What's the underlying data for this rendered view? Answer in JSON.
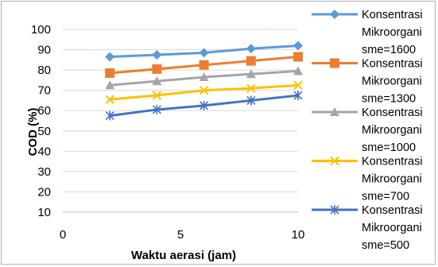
{
  "chart_data": {
    "type": "line",
    "title": "",
    "xlabel": "Waktu aerasi  (jam)",
    "ylabel": "COD (%)",
    "xlim": [
      0,
      10
    ],
    "ylim": [
      10,
      100
    ],
    "x_ticks": [
      "0",
      "5",
      "10"
    ],
    "y_ticks": [
      "10",
      "20",
      "30",
      "40",
      "50",
      "60",
      "70",
      "80",
      "90",
      "100"
    ],
    "grid": "horizontal",
    "legend_position": "right",
    "x": [
      2,
      4,
      6,
      8,
      10
    ],
    "series": [
      {
        "name": "Konsentrasi Mikroorganisme=1600",
        "legend_lines": [
          "Konsentrasi",
          "Mikroorgani",
          "sme=1600"
        ],
        "color": "#5B9BD5",
        "marker": "diamond",
        "values": [
          86.5,
          87.5,
          88.5,
          90.5,
          92
        ]
      },
      {
        "name": "Konsentrasi Mikroorganisme=1300",
        "legend_lines": [
          "Konsentrasi",
          "Mikroorgani",
          "sme=1300"
        ],
        "color": "#ED7D31",
        "marker": "square",
        "values": [
          78.5,
          80.5,
          82.5,
          84.5,
          86.5
        ]
      },
      {
        "name": "Konsentrasi Mikroorganisme=1000",
        "legend_lines": [
          "Konsentrasi",
          "Mikroorgani",
          "sme=1000"
        ],
        "color": "#A5A5A5",
        "marker": "triangle",
        "values": [
          72.5,
          74.5,
          76.5,
          78,
          79.5
        ]
      },
      {
        "name": "Konsentrasi Mikroorganisme=700",
        "legend_lines": [
          "Konsentrasi",
          "Mikroorgani",
          "sme=700"
        ],
        "color": "#FFC000",
        "marker": "x",
        "values": [
          65.5,
          67.5,
          70,
          71,
          72.5
        ]
      },
      {
        "name": "Konsentrasi Mikroorganisme=500",
        "legend_lines": [
          "Konsentrasi",
          "Mikroorgani",
          "sme=500"
        ],
        "color": "#4472C4",
        "marker": "star",
        "values": [
          57.5,
          60.5,
          62.5,
          65,
          67.5
        ]
      }
    ]
  }
}
